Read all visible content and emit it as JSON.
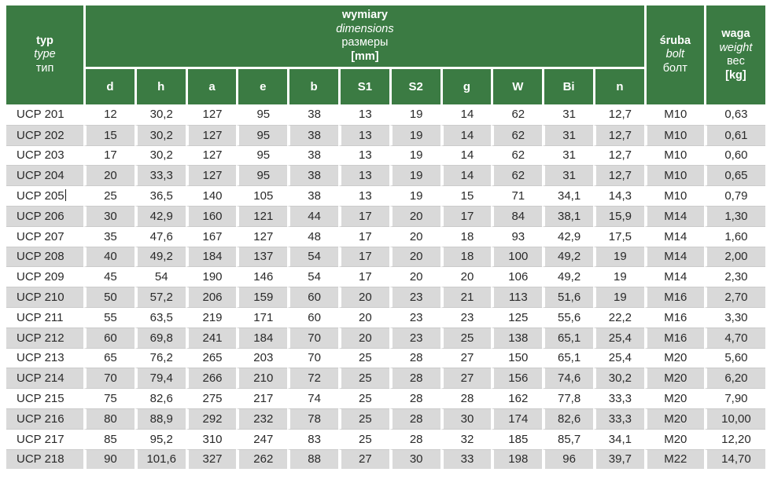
{
  "colors": {
    "header_green": "#3b7b43",
    "stripe_gray": "#d9d9d9",
    "row_line": "#cbcbcb",
    "text": "#2a2a2a"
  },
  "table": {
    "header": {
      "typ": {
        "pl": "typ",
        "en": "type",
        "ru": "тип"
      },
      "dimensions": {
        "pl": "wymiary",
        "en": "dimensions",
        "ru": "размеры",
        "unit": "[mm]"
      },
      "bolt": {
        "pl": "śruba",
        "en": "bolt",
        "ru": "болт"
      },
      "weight": {
        "pl": "waga",
        "en": "weight",
        "ru": "вес",
        "unit": "[kg]"
      },
      "dim_columns": [
        "d",
        "h",
        "a",
        "e",
        "b",
        "S1",
        "S2",
        "g",
        "W",
        "Bi",
        "n"
      ]
    },
    "rows": [
      {
        "typ": "UCP 201",
        "dims": [
          "12",
          "30,2",
          "127",
          "95",
          "38",
          "13",
          "19",
          "14",
          "62",
          "31",
          "12,7"
        ],
        "bolt": "M10",
        "weight": "0,63"
      },
      {
        "typ": "UCP 202",
        "dims": [
          "15",
          "30,2",
          "127",
          "95",
          "38",
          "13",
          "19",
          "14",
          "62",
          "31",
          "12,7"
        ],
        "bolt": "M10",
        "weight": "0,61"
      },
      {
        "typ": "UCP 203",
        "dims": [
          "17",
          "30,2",
          "127",
          "95",
          "38",
          "13",
          "19",
          "14",
          "62",
          "31",
          "12,7"
        ],
        "bolt": "M10",
        "weight": "0,60"
      },
      {
        "typ": "UCP 204",
        "dims": [
          "20",
          "33,3",
          "127",
          "95",
          "38",
          "13",
          "19",
          "14",
          "62",
          "31",
          "12,7"
        ],
        "bolt": "M10",
        "weight": "0,65"
      },
      {
        "typ": "UCP 205",
        "dims": [
          "25",
          "36,5",
          "140",
          "105",
          "38",
          "13",
          "19",
          "15",
          "71",
          "34,1",
          "14,3"
        ],
        "bolt": "M10",
        "weight": "0,79",
        "cursor": true
      },
      {
        "typ": "UCP 206",
        "dims": [
          "30",
          "42,9",
          "160",
          "121",
          "44",
          "17",
          "20",
          "17",
          "84",
          "38,1",
          "15,9"
        ],
        "bolt": "M14",
        "weight": "1,30"
      },
      {
        "typ": "UCP 207",
        "dims": [
          "35",
          "47,6",
          "167",
          "127",
          "48",
          "17",
          "20",
          "18",
          "93",
          "42,9",
          "17,5"
        ],
        "bolt": "M14",
        "weight": "1,60"
      },
      {
        "typ": "UCP 208",
        "dims": [
          "40",
          "49,2",
          "184",
          "137",
          "54",
          "17",
          "20",
          "18",
          "100",
          "49,2",
          "19"
        ],
        "bolt": "M14",
        "weight": "2,00"
      },
      {
        "typ": "UCP 209",
        "dims": [
          "45",
          "54",
          "190",
          "146",
          "54",
          "17",
          "20",
          "20",
          "106",
          "49,2",
          "19"
        ],
        "bolt": "M14",
        "weight": "2,30"
      },
      {
        "typ": "UCP 210",
        "dims": [
          "50",
          "57,2",
          "206",
          "159",
          "60",
          "20",
          "23",
          "21",
          "113",
          "51,6",
          "19"
        ],
        "bolt": "M16",
        "weight": "2,70"
      },
      {
        "typ": "UCP 211",
        "dims": [
          "55",
          "63,5",
          "219",
          "171",
          "60",
          "20",
          "23",
          "23",
          "125",
          "55,6",
          "22,2"
        ],
        "bolt": "M16",
        "weight": "3,30"
      },
      {
        "typ": "UCP 212",
        "dims": [
          "60",
          "69,8",
          "241",
          "184",
          "70",
          "20",
          "23",
          "25",
          "138",
          "65,1",
          "25,4"
        ],
        "bolt": "M16",
        "weight": "4,70"
      },
      {
        "typ": "UCP 213",
        "dims": [
          "65",
          "76,2",
          "265",
          "203",
          "70",
          "25",
          "28",
          "27",
          "150",
          "65,1",
          "25,4"
        ],
        "bolt": "M20",
        "weight": "5,60"
      },
      {
        "typ": "UCP 214",
        "dims": [
          "70",
          "79,4",
          "266",
          "210",
          "72",
          "25",
          "28",
          "27",
          "156",
          "74,6",
          "30,2"
        ],
        "bolt": "M20",
        "weight": "6,20"
      },
      {
        "typ": "UCP 215",
        "dims": [
          "75",
          "82,6",
          "275",
          "217",
          "74",
          "25",
          "28",
          "28",
          "162",
          "77,8",
          "33,3"
        ],
        "bolt": "M20",
        "weight": "7,90"
      },
      {
        "typ": "UCP 216",
        "dims": [
          "80",
          "88,9",
          "292",
          "232",
          "78",
          "25",
          "28",
          "30",
          "174",
          "82,6",
          "33,3"
        ],
        "bolt": "M20",
        "weight": "10,00"
      },
      {
        "typ": "UCP 217",
        "dims": [
          "85",
          "95,2",
          "310",
          "247",
          "83",
          "25",
          "28",
          "32",
          "185",
          "85,7",
          "34,1"
        ],
        "bolt": "M20",
        "weight": "12,20"
      },
      {
        "typ": "UCP 218",
        "dims": [
          "90",
          "101,6",
          "327",
          "262",
          "88",
          "27",
          "30",
          "33",
          "198",
          "96",
          "39,7"
        ],
        "bolt": "M22",
        "weight": "14,70"
      }
    ]
  }
}
